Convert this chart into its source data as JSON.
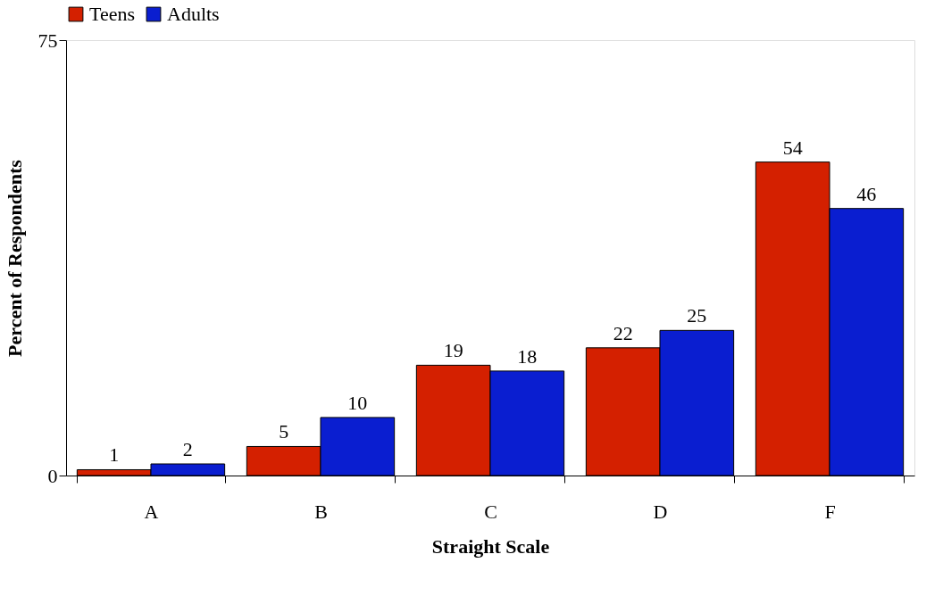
{
  "chart_data": {
    "type": "bar",
    "xlabel": "Straight Scale",
    "ylabel": "Percent of  Respondents",
    "categories": [
      "A",
      "B",
      "C",
      "D",
      "F"
    ],
    "series": [
      {
        "name": "Teens",
        "color": "#d42000",
        "values": [
          1,
          5,
          19,
          22,
          54
        ]
      },
      {
        "name": "Adults",
        "color": "#0a1ed0",
        "values": [
          2,
          10,
          18,
          25,
          46
        ]
      }
    ],
    "ylim": [
      0,
      75
    ],
    "yticks": [
      0,
      75
    ],
    "grid": false,
    "legend": "top",
    "data_labels": true
  }
}
